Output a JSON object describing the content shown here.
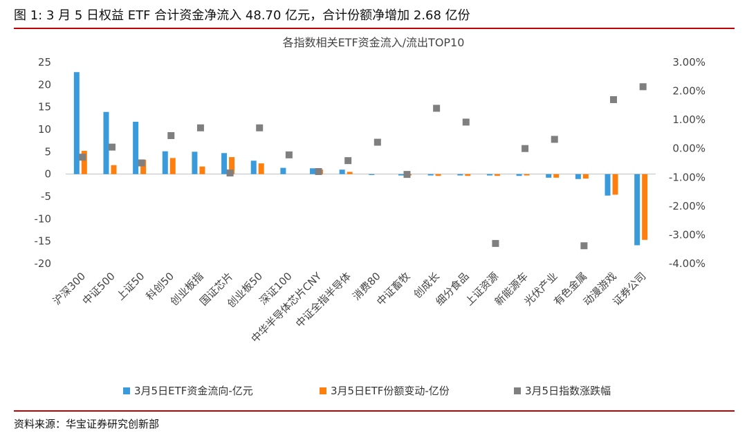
{
  "figure": {
    "caption": "图 1:  3 月 5 日权益 ETF 合计资金净流入 48.70 亿元，合计份额净增加 2.68 亿份",
    "source": "资料来源：华宝证券研究创新部"
  },
  "colors": {
    "flow": "#3a9bdc",
    "share": "#ff7f0e",
    "change": "#7f7f7f",
    "rule": "#c00000"
  },
  "chart_data": {
    "type": "bar",
    "title": "各指数相关ETF资金流入/流出TOP10",
    "categories": [
      "沪深300",
      "中证500",
      "上证50",
      "科创50",
      "创业板指",
      "国证芯片",
      "创业板50",
      "深证100",
      "中华半导体芯片CNY",
      "中证全指半导体",
      "消费80",
      "中证畜牧",
      "创成长",
      "细分食品",
      "上证资源",
      "新能源车",
      "光伏产业",
      "有色金属",
      "动漫游戏",
      "证券公司"
    ],
    "series": [
      {
        "name": "3月5日ETF资金流向-亿元",
        "axis": "left",
        "kind": "bar",
        "values": [
          22.8,
          13.9,
          11.7,
          5.1,
          5.0,
          4.7,
          3.0,
          1.4,
          1.3,
          1.0,
          -0.2,
          -0.3,
          -0.3,
          -0.3,
          -0.3,
          -0.4,
          -0.8,
          -1.1,
          -4.8,
          -15.9
        ]
      },
      {
        "name": "3月5日ETF份额变动-亿份",
        "axis": "left",
        "kind": "bar",
        "values": [
          5.2,
          2.0,
          3.2,
          3.6,
          1.7,
          3.8,
          2.4,
          0.0,
          1.0,
          0.5,
          0.0,
          -0.3,
          -0.4,
          -0.4,
          -0.4,
          -0.3,
          -0.8,
          -1.0,
          -4.6,
          -14.7
        ]
      },
      {
        "name": "3月5日指数涨跌幅",
        "axis": "right",
        "kind": "scatter",
        "values": [
          -0.3,
          0.05,
          -0.5,
          0.45,
          0.72,
          -0.85,
          0.72,
          -0.22,
          -0.8,
          -0.42,
          0.22,
          -0.9,
          1.4,
          0.92,
          -3.3,
          0.0,
          0.32,
          -3.38,
          1.7,
          2.15
        ]
      }
    ],
    "y_left": {
      "min": -20,
      "max": 25,
      "step": 5
    },
    "y_right": {
      "min": -4,
      "max": 3,
      "step": 1,
      "format": "percent"
    },
    "grid": false,
    "legend": "bottom"
  }
}
